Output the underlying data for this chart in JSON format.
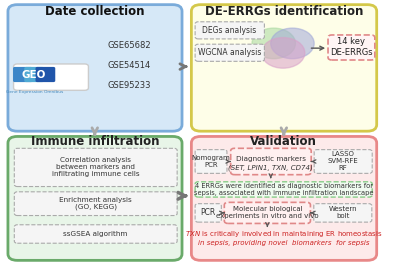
{
  "bg_color": "#ffffff",
  "top_left": {
    "title": "Date collection",
    "bg": "#d6e8f7",
    "border": "#7aabda",
    "datasets": [
      "GSE65682",
      "GSE54514",
      "GSE95233"
    ]
  },
  "top_right": {
    "title": "DE-ERRGs identification",
    "bg": "#fefee8",
    "border": "#d4c84a",
    "degs": "DEGs analysis",
    "wgcna": "WGCNA analysis",
    "key_text": "14 key\nDE-ERRGs"
  },
  "bot_left": {
    "title": "Immune infiltration",
    "bg": "#e8f5e8",
    "border": "#6aaa6a",
    "item1": "Correlation analysis\nbetween markers and\ninfiltrating immune cells",
    "item2": "Enrichment analysis\n(GO, KEGG)",
    "item3": "ssGSEA algorithm"
  },
  "bot_right": {
    "title": "Validation",
    "bg": "#fdeaea",
    "border": "#e88888",
    "nomogram": "Nomogram\nPCR",
    "diag_title": "Diagnostic markers",
    "diag_genes": "(SET, LPIN1, TXN, CD74)",
    "lasso": "LASSO\nSVM-RFE\nRF",
    "middle": "4 ERRGs were identified as diagnostic biomarkers for\nsepsis, associated with immune infiltration landscape",
    "pcr": "PCR",
    "molbio": "Molecular biological\nexperiments in vitro and vivo",
    "western": "Western\nbolt",
    "bottom1": "TXN is critically involved in maintaining ER homeostasis",
    "bottom2": "in sepsis, providing novel  biomarkers  for sepsis"
  },
  "venn": {
    "c1_color": "#a8d8a0",
    "c2_color": "#a0a8d8",
    "c3_color": "#d8a0c8"
  },
  "arrow_color": "#666666",
  "dashed_bg": "#f5f5f5",
  "dashed_border": "#aaaaaa"
}
